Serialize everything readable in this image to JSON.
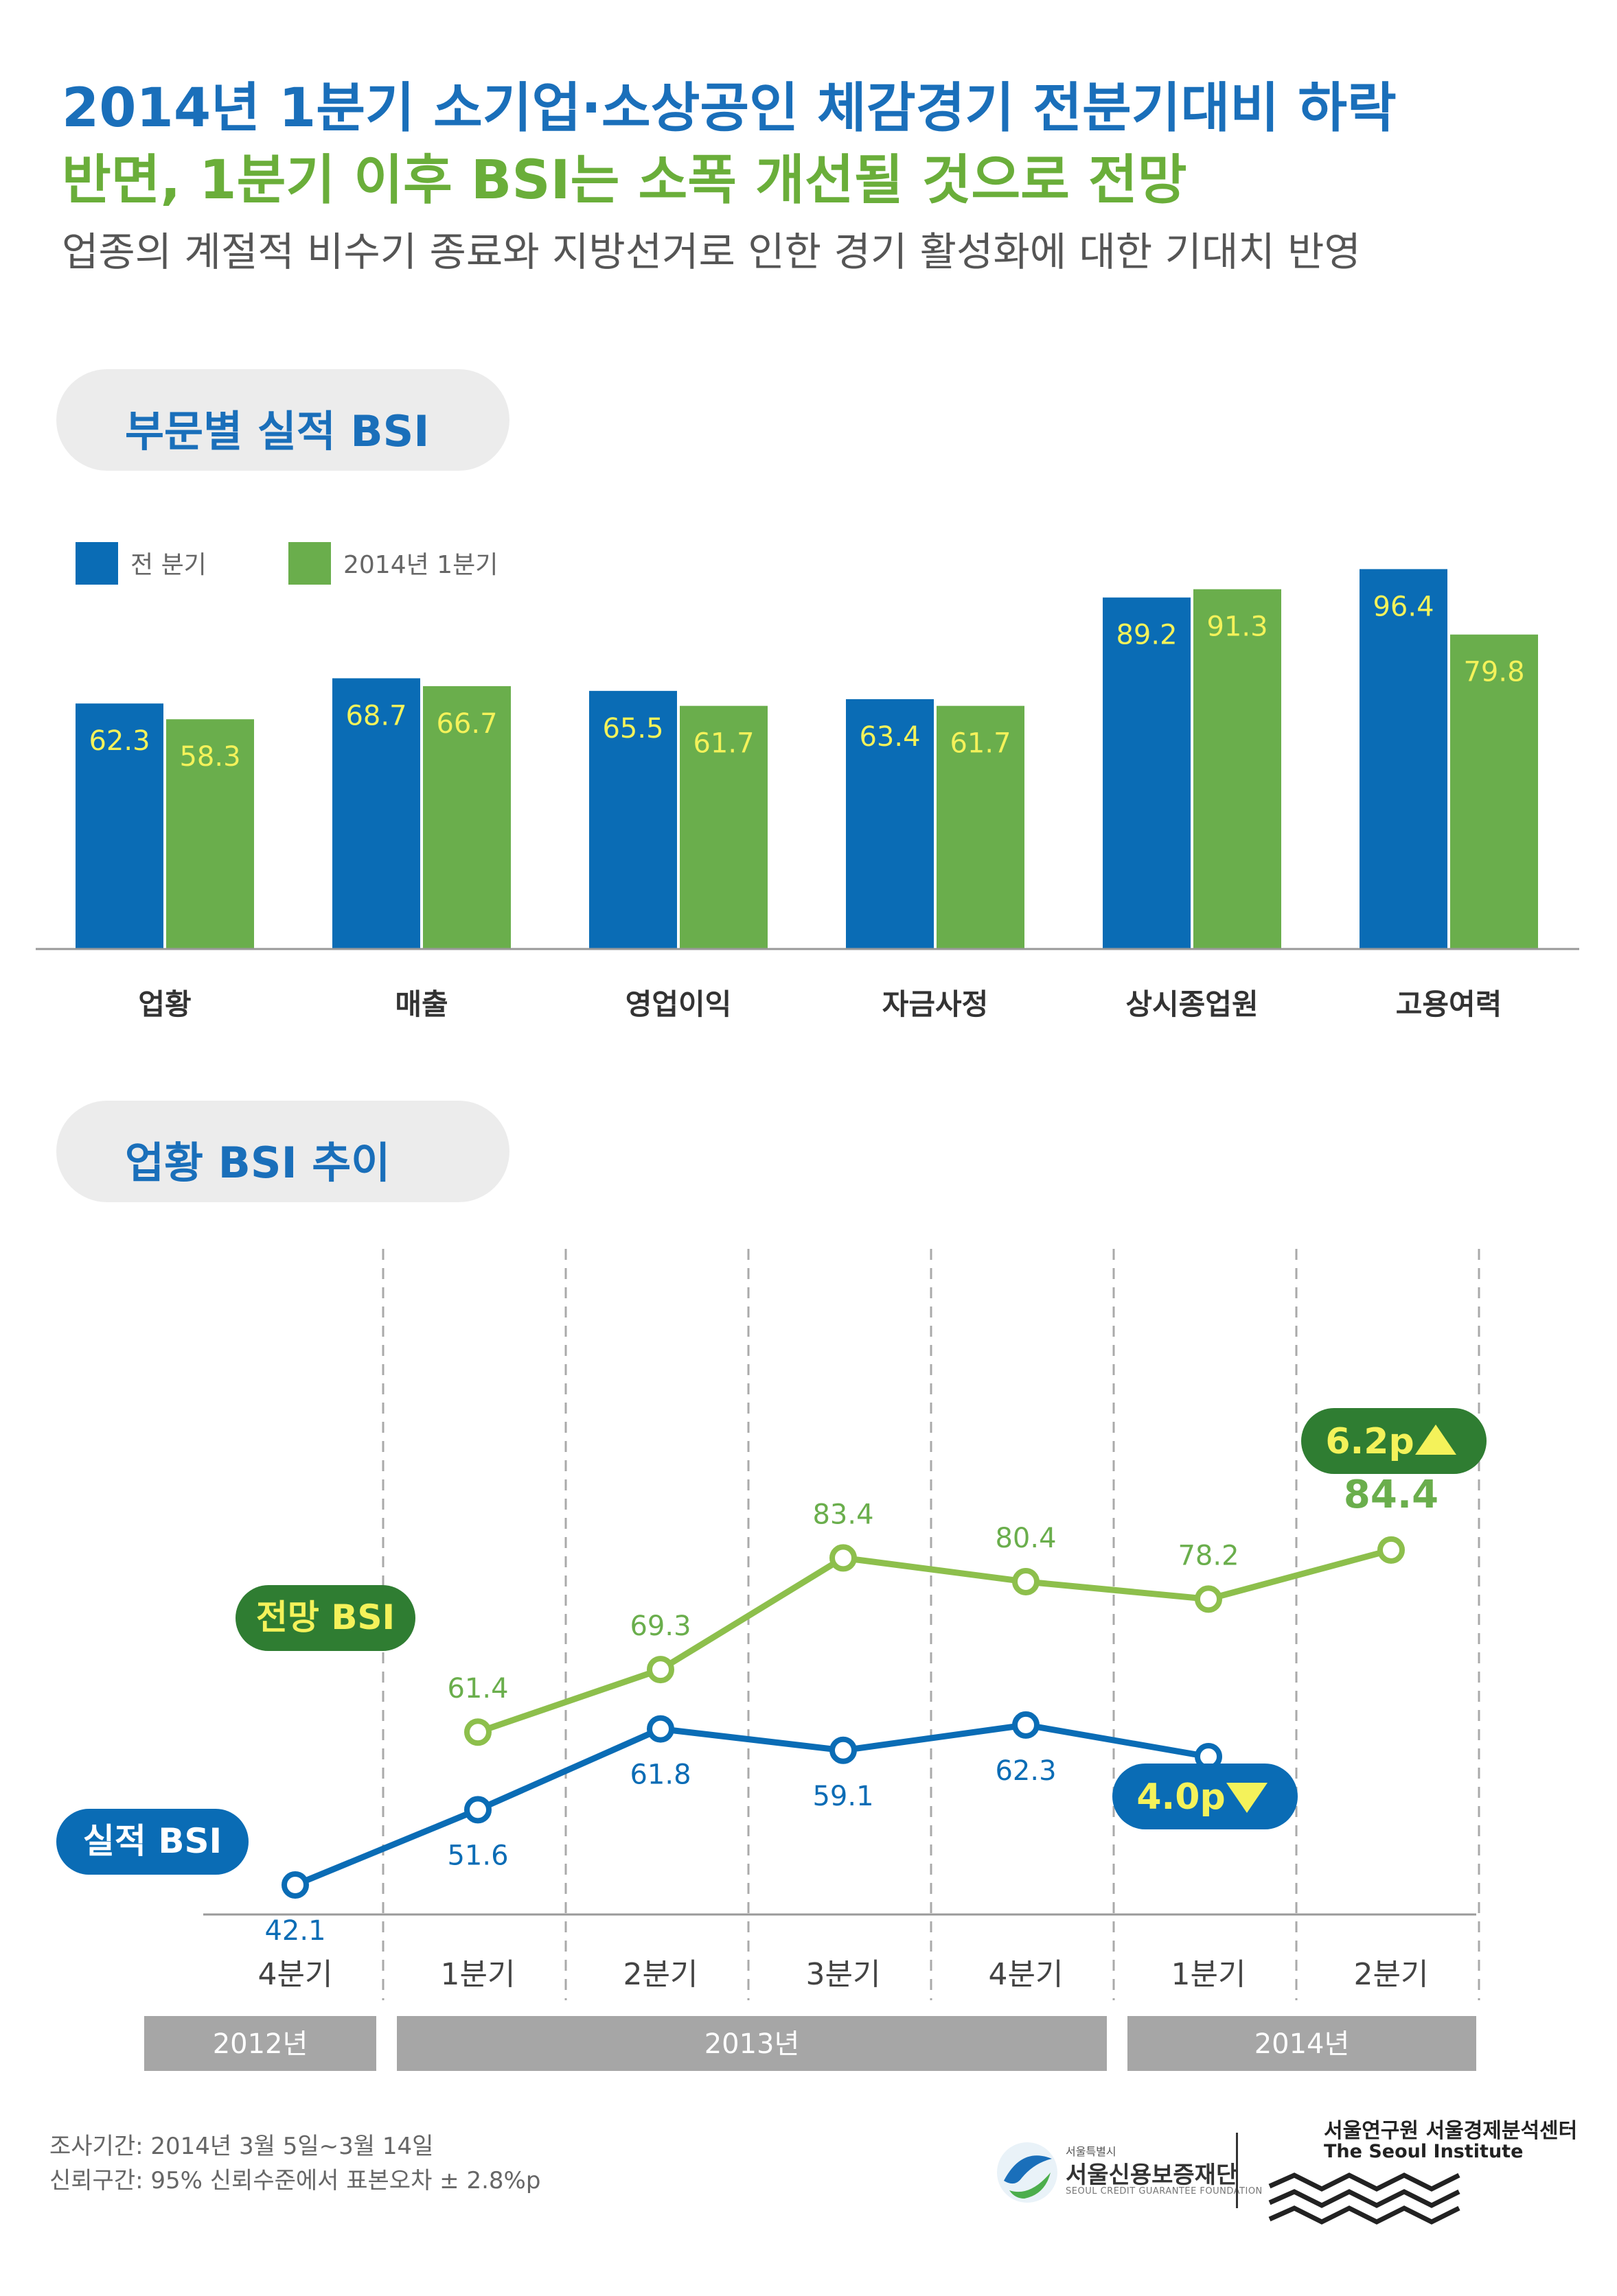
{
  "header": {
    "title_line1": "2014년 1분기 소기업·소상공인 체감경기 전분기대비 하락",
    "title_line2": "반면, 1분기 이후 BSI는 소폭 개선될 것으로 전망",
    "subtitle": "업종의 계절적 비수기 종료와 지방선거로 인한 경기 활성화에 대한 기대치 반영"
  },
  "sections": {
    "bar_title": "부문별 실적 BSI",
    "line_title": "업황 BSI 추이"
  },
  "colors": {
    "blue": "#0a6cb5",
    "green": "#6aae4c",
    "light_green": "#8dbf4c",
    "dark_green": "#2f7d32",
    "label_yellow": "#f4f25a",
    "gray": "#a6a6a6"
  },
  "chart_data": [
    {
      "type": "bar",
      "categories": [
        "업황",
        "매출",
        "영업이익",
        "자금사정",
        "상시종업원",
        "고용여력"
      ],
      "series": [
        {
          "name": "전 분기",
          "values": [
            62.3,
            68.7,
            65.5,
            63.4,
            89.2,
            96.4
          ]
        },
        {
          "name": "2014년 1분기",
          "values": [
            58.3,
            66.7,
            61.7,
            61.7,
            91.3,
            79.8
          ]
        }
      ],
      "legend_position": "top-left",
      "ylim": [
        0,
        105
      ]
    },
    {
      "type": "line",
      "x": [
        "4분기",
        "1분기",
        "2분기",
        "3분기",
        "4분기",
        "1분기",
        "2분기"
      ],
      "year_groups": [
        {
          "label": "2012년",
          "span": 1
        },
        {
          "label": "2013년",
          "span": 4
        },
        {
          "label": "2014년",
          "span": 2
        }
      ],
      "series": [
        {
          "name": "실적 BSI",
          "values": [
            42.1,
            51.6,
            61.8,
            59.1,
            62.3,
            58.3,
            null
          ]
        },
        {
          "name": "전망 BSI",
          "values": [
            null,
            61.4,
            69.3,
            83.4,
            80.4,
            78.2,
            84.4
          ]
        }
      ],
      "annotations": [
        {
          "series": "전망 BSI",
          "text": "6.2p",
          "direction": "up"
        },
        {
          "series": "실적 BSI",
          "text": "4.0p",
          "direction": "down"
        }
      ],
      "ylim": [
        35,
        90
      ]
    }
  ],
  "footer": {
    "survey_period": "조사기간:  2014년 3월 5일~3월 14일",
    "confidence": "신뢰구간:  95% 신뢰수준에서 표본오차 ± 2.8%p"
  },
  "logos": {
    "foundation_small": "서울특별시",
    "foundation_name": "서울신용보증재단",
    "foundation_en": "SEOUL CREDIT GUARANTEE FOUNDATION",
    "institute_kr": "서울연구원 서울경제분석센터",
    "institute_en": "The Seoul Institute"
  }
}
